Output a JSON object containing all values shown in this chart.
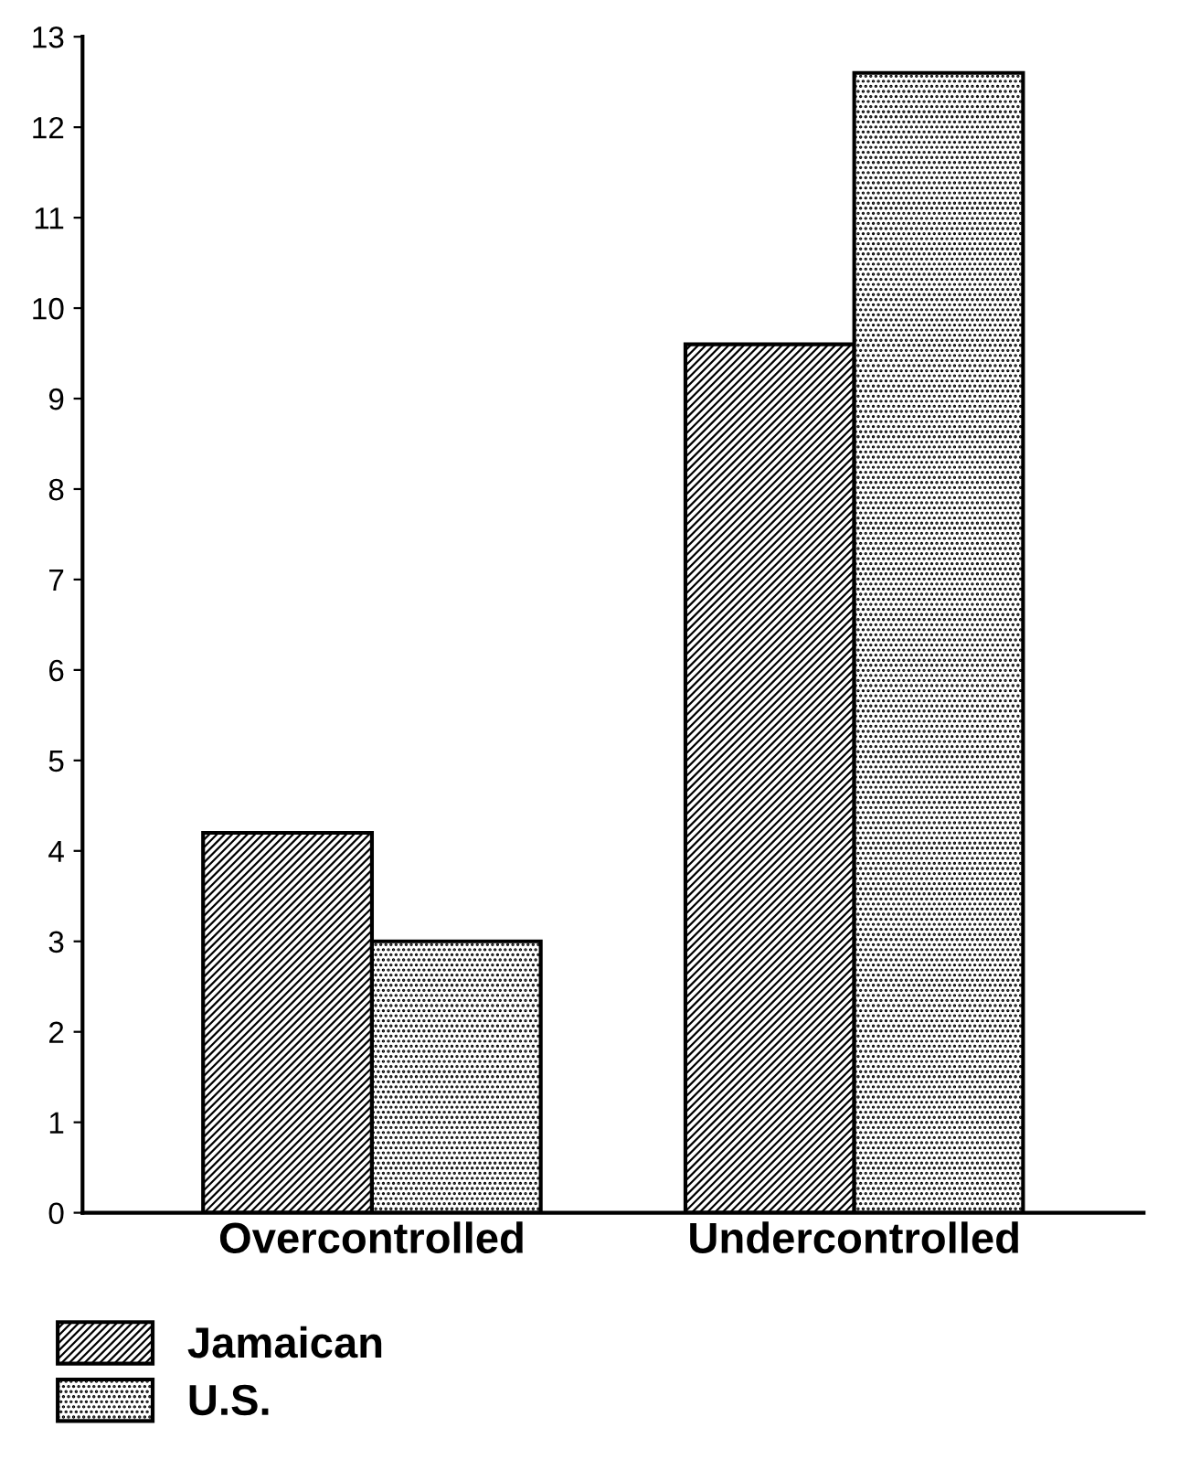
{
  "chart_data": {
    "type": "bar",
    "categories": [
      "Overcontrolled",
      "Undercontrolled"
    ],
    "series": [
      {
        "name": "Jamaican",
        "color": "#000000",
        "values": [
          4.2,
          9.6
        ]
      },
      {
        "name": "U.S.",
        "color": "#000000",
        "values": [
          3.0,
          12.6
        ]
      }
    ],
    "ylim": [
      0,
      13
    ],
    "yticks": [
      0,
      1,
      2,
      3,
      4,
      5,
      6,
      7,
      8,
      9,
      10,
      11,
      12,
      13
    ],
    "grid": false,
    "legend": "bottom left"
  }
}
